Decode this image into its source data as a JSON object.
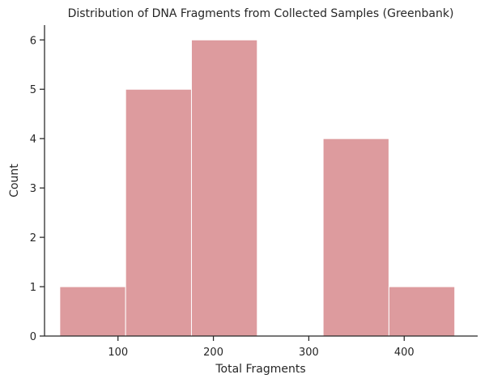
{
  "chart_data": {
    "type": "bar",
    "title": "Distribution of DNA Fragments from Collected Samples (Greenbank)",
    "xlabel": "Total Fragments",
    "ylabel": "Count",
    "xlim": [
      23,
      477
    ],
    "ylim": [
      0,
      6.3
    ],
    "xticks": [
      100,
      200,
      300,
      400
    ],
    "yticks": [
      0,
      1,
      2,
      3,
      4,
      5,
      6
    ],
    "bar_color": "#dd9b9e",
    "bins": [
      {
        "x0": 39,
        "x1": 108,
        "count": 1
      },
      {
        "x0": 108,
        "x1": 177,
        "count": 5
      },
      {
        "x0": 177,
        "x1": 246,
        "count": 6
      },
      {
        "x0": 246,
        "x1": 315,
        "count": 0
      },
      {
        "x0": 315,
        "x1": 384,
        "count": 4
      },
      {
        "x0": 384,
        "x1": 453,
        "count": 1
      }
    ],
    "grid": false,
    "legend": "none"
  }
}
